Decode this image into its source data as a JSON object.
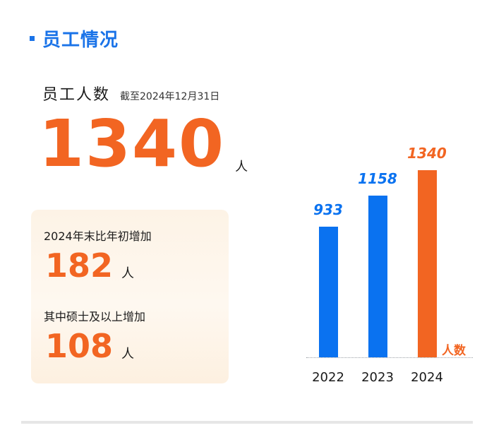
{
  "section": {
    "title": "员工情况"
  },
  "headcount": {
    "label": "员工人数",
    "as_of": "截至2024年12月31日",
    "value": "1340",
    "unit": "人"
  },
  "card": {
    "items": [
      {
        "label": "2024年末比年初增加",
        "value": "182",
        "unit": "人"
      },
      {
        "label": "其中硕士及以上增加",
        "value": "108",
        "unit": "人"
      }
    ]
  },
  "colors": {
    "accent_blue": "#1a73e8",
    "accent_orange": "#f26522"
  },
  "chart_data": {
    "type": "bar",
    "title": "",
    "categories": [
      "2022",
      "2023",
      "2024"
    ],
    "values": [
      933,
      1158,
      1340
    ],
    "value_labels": [
      "933",
      "1158",
      "1340"
    ],
    "bar_colors": [
      "#0a72f0",
      "#0a72f0",
      "#f26522"
    ],
    "unit_label": "人数",
    "xlabel": "",
    "ylabel": "人数",
    "grid": false,
    "legend": false
  }
}
